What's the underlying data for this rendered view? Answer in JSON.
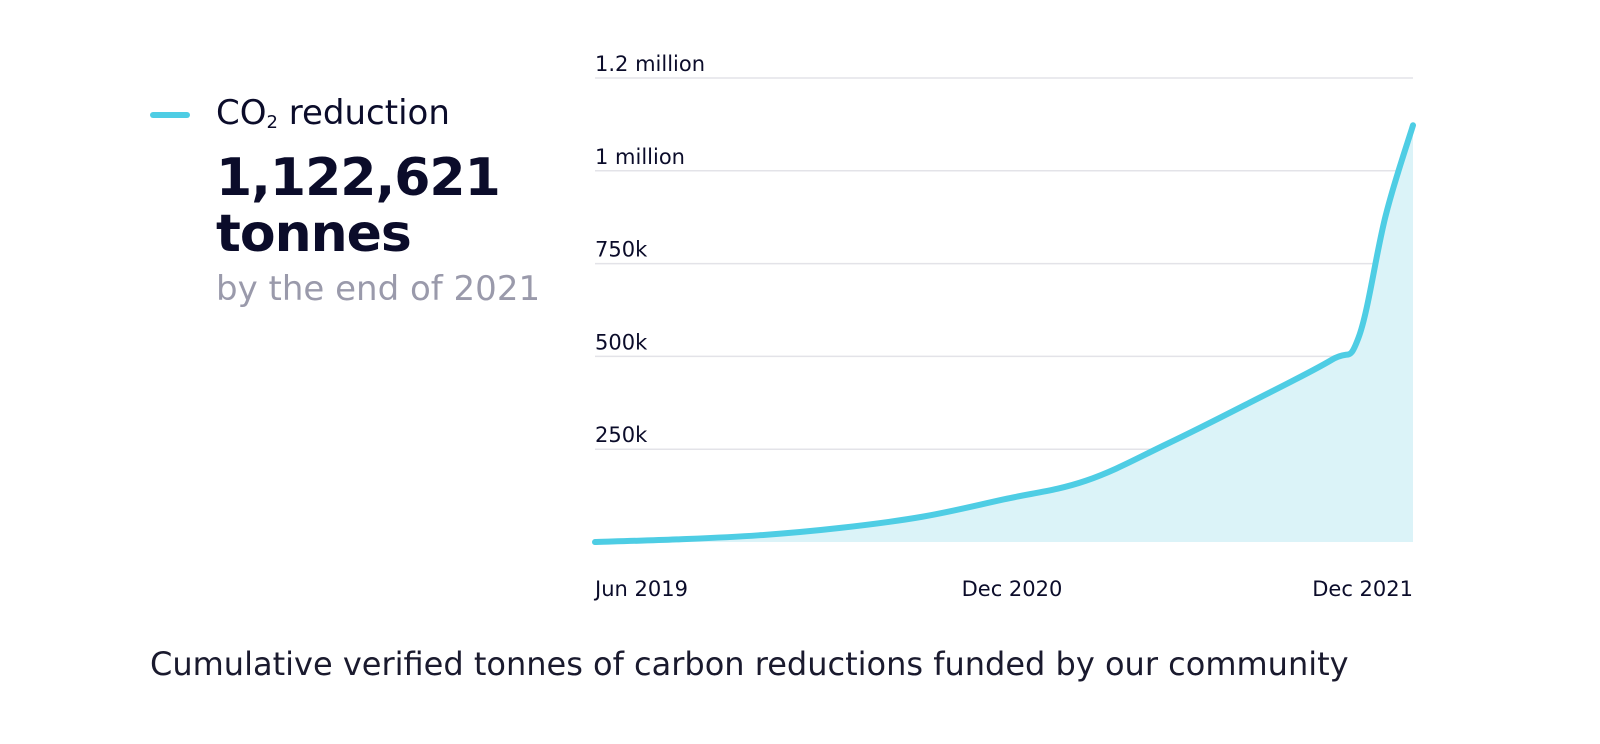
{
  "legend": {
    "label_main": "CO",
    "label_sub": "2",
    "label_rest": " reduction",
    "value": "1,122,621 tonnes",
    "subtext": "by the end of 2021"
  },
  "caption": "Cumulative verified tonnes of carbon reductions funded by our community",
  "colors": {
    "line": "#4ecde4",
    "fill": "#dbf3f8",
    "grid": "#e3e3e8",
    "text": "#0b0c2a"
  },
  "chart_data": {
    "type": "area",
    "title": "",
    "xlabel": "",
    "ylabel": "",
    "x_ticks": [
      "Jun 2019",
      "Dec 2020",
      "Dec 2021"
    ],
    "y_ticks": [
      {
        "value": 250000,
        "label": "250k"
      },
      {
        "value": 500000,
        "label": "500k"
      },
      {
        "value": 750000,
        "label": "750k"
      },
      {
        "value": 1000000,
        "label": "1 million"
      },
      {
        "value": 1250000,
        "label": "1.2 million"
      }
    ],
    "ylim": [
      0,
      1250000
    ],
    "xlim": [
      "2019-06",
      "2021-12"
    ],
    "series": [
      {
        "name": "CO2 reduction",
        "x": [
          "2019-06",
          "2019-09",
          "2019-12",
          "2020-03",
          "2020-06",
          "2020-09",
          "2020-12",
          "2021-03",
          "2021-06",
          "2021-09",
          "2021-10",
          "2021-11",
          "2021-12"
        ],
        "y": [
          0,
          7000,
          18000,
          38000,
          68000,
          115000,
          165000,
          265000,
          375000,
          490000,
          550000,
          880000,
          1122621
        ]
      }
    ],
    "grid": true,
    "legend": "top-left"
  }
}
